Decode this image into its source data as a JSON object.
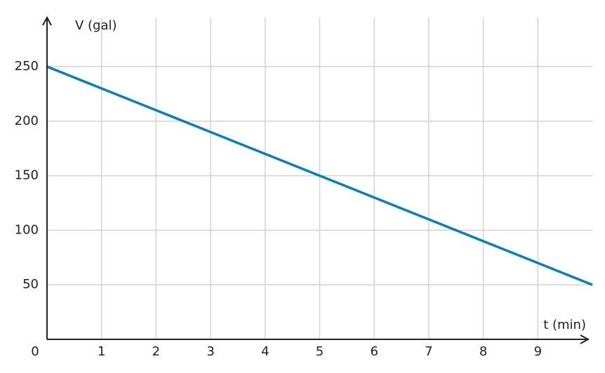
{
  "chart_data": {
    "type": "line",
    "x_label": "t (min)",
    "y_label": "V (gal)",
    "x": [
      0,
      1,
      2,
      3,
      4,
      5,
      6,
      7,
      8,
      9,
      10
    ],
    "series": [
      {
        "color": "#0a7fb5",
        "values": [
          250,
          230,
          210,
          190,
          170,
          150,
          130,
          110,
          90,
          70,
          50
        ]
      }
    ],
    "xlim": [
      0,
      10
    ],
    "ylim": [
      0,
      295
    ],
    "xticks": [
      0,
      1,
      2,
      3,
      4,
      5,
      6,
      7,
      8,
      9
    ],
    "yticks": [
      50,
      100,
      150,
      200,
      250
    ],
    "grid": true
  }
}
